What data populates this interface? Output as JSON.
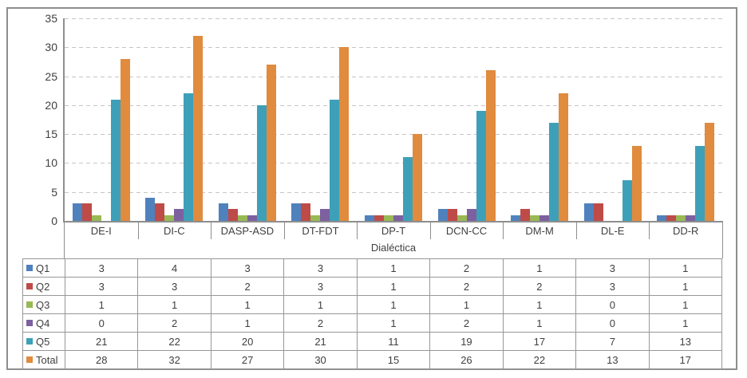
{
  "colors": {
    "background": "#FFFFFF",
    "frame_border": "#8E8E8E",
    "axis": "#8E8E8E",
    "gridline": "#C6C6C6",
    "table_border": "#979797",
    "text": "#3F3F3F"
  },
  "chart_data": {
    "type": "bar",
    "title": "",
    "xlabel": "Dialéctica",
    "ylabel": "",
    "ylim": [
      0,
      35
    ],
    "yticks": [
      0,
      5,
      10,
      15,
      20,
      25,
      30,
      35
    ],
    "grid": "horizontal-dashed",
    "legend_position": "data-table-left-column",
    "data_table_shown": true,
    "categories": [
      "DE-I",
      "DI-C",
      "DASP-ASD",
      "DT-FDT",
      "DP-T",
      "DCN-CC",
      "DM-M",
      "DL-E",
      "DD-R"
    ],
    "series": [
      {
        "name": "Q1",
        "color": "#4F81BD",
        "values": [
          3,
          4,
          3,
          3,
          1,
          2,
          1,
          3,
          1
        ]
      },
      {
        "name": "Q2",
        "color": "#BE4B48",
        "values": [
          3,
          3,
          2,
          3,
          1,
          2,
          2,
          3,
          1
        ]
      },
      {
        "name": "Q3",
        "color": "#98B954",
        "values": [
          1,
          1,
          1,
          1,
          1,
          1,
          1,
          0,
          1
        ]
      },
      {
        "name": "Q4",
        "color": "#7D60A0",
        "values": [
          0,
          2,
          1,
          2,
          1,
          2,
          1,
          0,
          1
        ]
      },
      {
        "name": "Q5",
        "color": "#3EA0B8",
        "values": [
          21,
          22,
          20,
          21,
          11,
          19,
          17,
          7,
          13
        ]
      },
      {
        "name": "Total",
        "color": "#E08B3E",
        "values": [
          28,
          32,
          27,
          30,
          15,
          26,
          22,
          13,
          17
        ]
      }
    ]
  }
}
